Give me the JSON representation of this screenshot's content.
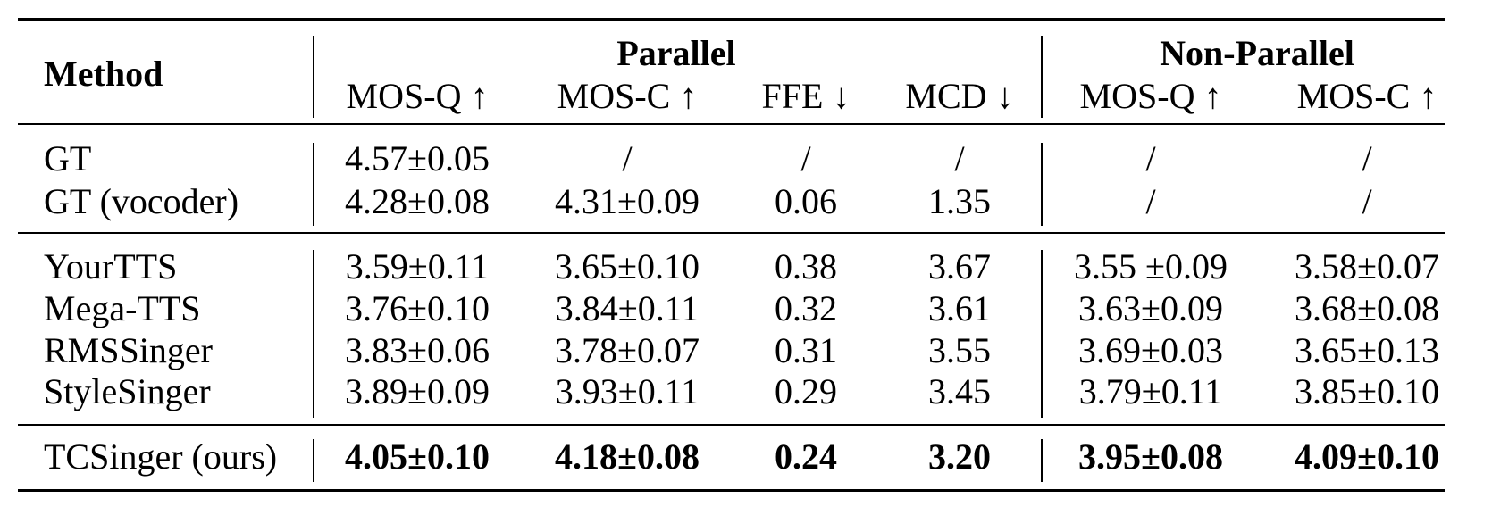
{
  "table": {
    "header": {
      "method": "Method",
      "group_parallel": "Parallel",
      "group_nonparallel": "Non-Parallel",
      "columns": [
        "MOS-Q ↑",
        "MOS-C ↑",
        "FFE ↓",
        "MCD ↓",
        "MOS-Q ↑",
        "MOS-C ↑"
      ]
    },
    "rows": [
      {
        "method": "GT",
        "values": [
          "4.57±0.05",
          "/",
          "/",
          "/",
          "/",
          "/"
        ]
      },
      {
        "method": "GT (vocoder)",
        "values": [
          "4.28±0.08",
          "4.31±0.09",
          "0.06",
          "1.35",
          "/",
          "/"
        ]
      },
      {
        "method": "YourTTS",
        "values": [
          "3.59±0.11",
          "3.65±0.10",
          "0.38",
          "3.67",
          "3.55 ±0.09",
          "3.58±0.07"
        ]
      },
      {
        "method": "Mega-TTS",
        "values": [
          "3.76±0.10",
          "3.84±0.11",
          "0.32",
          "3.61",
          "3.63±0.09",
          "3.68±0.08"
        ]
      },
      {
        "method": "RMSSinger",
        "values": [
          "3.83±0.06",
          "3.78±0.07",
          "0.31",
          "3.55",
          "3.69±0.03",
          "3.65±0.13"
        ]
      },
      {
        "method": "StyleSinger",
        "values": [
          "3.89±0.09",
          "3.93±0.11",
          "0.29",
          "3.45",
          "3.79±0.11",
          "3.85±0.10"
        ]
      },
      {
        "method": "TCSinger (ours)",
        "values": [
          "4.05±0.10",
          "4.18±0.08",
          "0.24",
          "3.20",
          "3.95±0.08",
          "4.09±0.10"
        ],
        "bold_values": true
      }
    ]
  }
}
